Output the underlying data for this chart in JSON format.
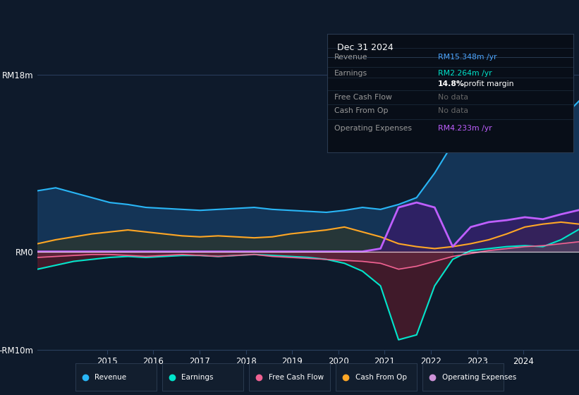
{
  "bg_color": "#0e1a2b",
  "plot_bg_color": "#0e1a2b",
  "title_box": {
    "date": "Dec 31 2024",
    "rows": [
      {
        "label": "Revenue",
        "value": "RM15.348m /yr",
        "value_color": "#4da6ff",
        "nodata": false
      },
      {
        "label": "Earnings",
        "value": "RM2.264m /yr",
        "value_color": "#00e5cc",
        "nodata": false
      },
      {
        "label": "",
        "value": "14.8% profit margin",
        "value_color": "#ffffff",
        "nodata": false
      },
      {
        "label": "Free Cash Flow",
        "value": "No data",
        "value_color": "#666666",
        "nodata": true
      },
      {
        "label": "Cash From Op",
        "value": "No data",
        "value_color": "#666666",
        "nodata": true
      },
      {
        "label": "Operating Expenses",
        "value": "RM4.233m /yr",
        "value_color": "#bf5fff",
        "nodata": false
      }
    ]
  },
  "ylim": [
    -10,
    18
  ],
  "yticks": [
    -10,
    0,
    18
  ],
  "ytick_labels": [
    "-RM10m",
    "RM0",
    "RM18m"
  ],
  "xlabel_ticks": [
    "2015",
    "2016",
    "2017",
    "2018",
    "2019",
    "2020",
    "2021",
    "2022",
    "2023",
    "2024"
  ],
  "legend": [
    {
      "label": "Revenue",
      "color": "#29b6f6"
    },
    {
      "label": "Earnings",
      "color": "#00e5cc"
    },
    {
      "label": "Free Cash Flow",
      "color": "#f06292"
    },
    {
      "label": "Cash From Op",
      "color": "#ffa726"
    },
    {
      "label": "Operating Expenses",
      "color": "#ce93d8"
    }
  ],
  "revenue": [
    6.2,
    6.5,
    6.0,
    5.5,
    5.0,
    4.8,
    4.5,
    4.4,
    4.3,
    4.2,
    4.3,
    4.4,
    4.5,
    4.3,
    4.2,
    4.1,
    4.0,
    4.2,
    4.5,
    4.3,
    4.8,
    5.5,
    8.0,
    11.0,
    15.5,
    17.0,
    14.5,
    11.5,
    11.0,
    13.5,
    15.348
  ],
  "earnings": [
    -1.8,
    -1.4,
    -1.0,
    -0.8,
    -0.6,
    -0.5,
    -0.6,
    -0.5,
    -0.4,
    -0.4,
    -0.5,
    -0.4,
    -0.3,
    -0.4,
    -0.5,
    -0.6,
    -0.8,
    -1.2,
    -2.0,
    -3.5,
    -9.0,
    -8.5,
    -3.5,
    -0.8,
    0.1,
    0.3,
    0.5,
    0.6,
    0.5,
    1.2,
    2.264
  ],
  "free_cash_flow": [
    -0.6,
    -0.5,
    -0.4,
    -0.3,
    -0.3,
    -0.4,
    -0.5,
    -0.4,
    -0.3,
    -0.4,
    -0.5,
    -0.4,
    -0.3,
    -0.5,
    -0.6,
    -0.7,
    -0.8,
    -0.9,
    -1.0,
    -1.2,
    -1.8,
    -1.5,
    -1.0,
    -0.5,
    -0.2,
    0.1,
    0.3,
    0.5,
    0.6,
    0.8,
    1.0
  ],
  "cash_from_op": [
    0.8,
    1.2,
    1.5,
    1.8,
    2.0,
    2.2,
    2.0,
    1.8,
    1.6,
    1.5,
    1.6,
    1.5,
    1.4,
    1.5,
    1.8,
    2.0,
    2.2,
    2.5,
    2.0,
    1.5,
    0.8,
    0.5,
    0.3,
    0.5,
    0.8,
    1.2,
    1.8,
    2.5,
    2.8,
    3.0,
    2.8
  ],
  "operating_expenses": [
    0.0,
    0.0,
    0.0,
    0.0,
    0.0,
    0.0,
    0.0,
    0.0,
    0.0,
    0.0,
    0.0,
    0.0,
    0.0,
    0.0,
    0.0,
    0.0,
    0.0,
    0.0,
    0.0,
    0.3,
    4.5,
    5.0,
    4.5,
    0.5,
    2.5,
    3.0,
    3.2,
    3.5,
    3.3,
    3.8,
    4.233
  ],
  "n_points": 31,
  "x_start_year": 2013.5,
  "x_end_year": 2025.2,
  "grid_color": "#2a3f5f",
  "line_color_revenue": "#29b6f6",
  "line_color_earnings": "#00e5cc",
  "line_color_fcf": "#f06292",
  "line_color_cashop": "#ffa726",
  "line_color_opex": "#bf5fff",
  "fill_revenue": "#1a4a7a",
  "fill_earnings_neg": "#5c1a2a",
  "fill_cashop": "#4a3a00",
  "fill_opex": "#3a1a6a"
}
